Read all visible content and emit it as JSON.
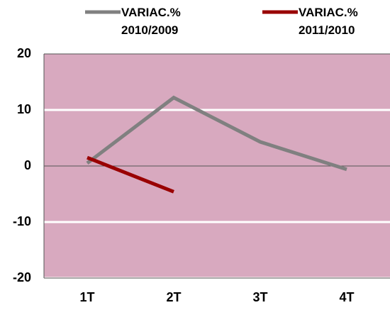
{
  "chart_data": {
    "type": "line",
    "categories": [
      "1T",
      "2T",
      "3T",
      "4T"
    ],
    "series": [
      {
        "name": "VARIAC.% 2010/2009",
        "color": "#808080",
        "values": [
          0.5,
          12.2,
          4.3,
          -0.6
        ]
      },
      {
        "name": "VARIAC.% 2011/2010",
        "color": "#990000",
        "values": [
          1.5,
          -4.6,
          null,
          null
        ]
      }
    ],
    "ylim": [
      -20,
      20
    ],
    "yticks": [
      -20,
      -10,
      0,
      10,
      20
    ],
    "grid": true,
    "plot_color": "#d8a9bf",
    "legend": "top"
  }
}
